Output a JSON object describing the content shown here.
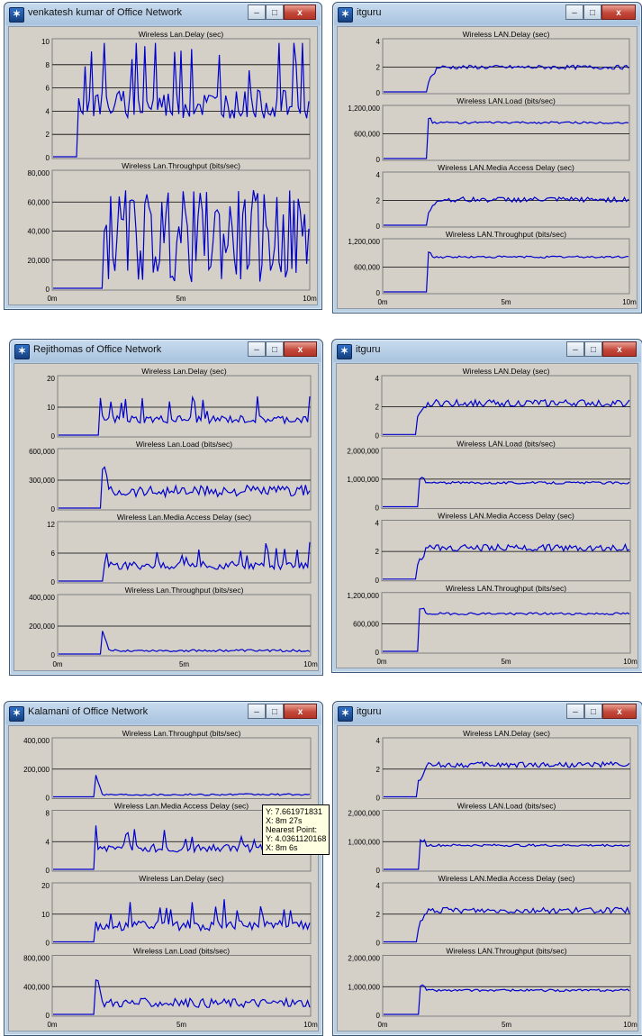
{
  "x_ticks": [
    "0m",
    "5m",
    "10m"
  ],
  "colors": {
    "series": "#0000cc",
    "plot_bg": "#d4d0c8",
    "grid": "#000000"
  },
  "windows": [
    {
      "id": "w1",
      "title": "venkatesh kumar of Office Network",
      "panels": [
        {
          "title": "Wireless Lan.Delay (sec)",
          "yticks": [
            "10",
            "8",
            "6",
            "4",
            "2",
            "0"
          ],
          "ymax": 10,
          "start": 0.1,
          "pattern": "spiky",
          "base": 0.33,
          "amp": 0.35,
          "startgap": false
        },
        {
          "title": "Wireless Lan.Throughput (bits/sec)",
          "yticks": [
            "80,000",
            "60,000",
            "40,000",
            "20,000",
            "0"
          ],
          "ymax": 80000,
          "start": 0.2,
          "pattern": "noisy",
          "base": 0.45,
          "amp": 0.4,
          "startgap": false
        }
      ]
    },
    {
      "id": "w2",
      "title": "itguru",
      "panels": [
        {
          "title": "Wireless LAN.Delay (sec)",
          "yticks": [
            "4",
            "2",
            "0"
          ],
          "ymax": 4,
          "start": 0.18,
          "pattern": "steady",
          "base": 0.48,
          "amp": 0.04,
          "startgap": false
        },
        {
          "title": "Wireless LAN.Load (bits/sec)",
          "yticks": [
            "1,200,000",
            "600,000",
            "0"
          ],
          "ymax": 1200000,
          "start": 0.18,
          "pattern": "step",
          "base": 0.7,
          "amp": 0.02,
          "startgap": false
        },
        {
          "title": "Wireless LAN.Media Access Delay (sec)",
          "yticks": [
            "4",
            "2",
            "0"
          ],
          "ymax": 4,
          "start": 0.18,
          "pattern": "steady",
          "base": 0.5,
          "amp": 0.05,
          "startgap": false
        },
        {
          "title": "Wireless LAN.Throughput (bits/sec)",
          "yticks": [
            "1,200,000",
            "600,000",
            "0"
          ],
          "ymax": 1200000,
          "start": 0.18,
          "pattern": "step",
          "base": 0.68,
          "amp": 0.02,
          "startgap": false
        }
      ]
    },
    {
      "id": "w3",
      "title": "Rejithomas of Office Network",
      "panels": [
        {
          "title": "Wireless Lan.Delay (sec)",
          "yticks": [
            "20",
            "10",
            "0"
          ],
          "ymax": 20,
          "start": 0.16,
          "pattern": "spiky",
          "base": 0.2,
          "amp": 0.2,
          "startgap": true
        },
        {
          "title": "Wireless Lan.Load (bits/sec)",
          "yticks": [
            "600,000",
            "300,000",
            "0"
          ],
          "ymax": 600000,
          "start": 0.17,
          "pattern": "decay",
          "base": 0.3,
          "amp": 0.1,
          "startgap": false
        },
        {
          "title": "Wireless Lan.Media Access Delay (sec)",
          "yticks": [
            "12",
            "6",
            "0"
          ],
          "ymax": 12,
          "start": 0.18,
          "pattern": "spiky",
          "base": 0.2,
          "amp": 0.2,
          "startgap": true
        },
        {
          "title": "Wireless Lan.Throughput (bits/sec)",
          "yticks": [
            "400,000",
            "200,000",
            "0"
          ],
          "ymax": 400000,
          "start": 0.17,
          "pattern": "pulse",
          "base": 0.06,
          "amp": 0.04,
          "startgap": false
        }
      ]
    },
    {
      "id": "w4",
      "title": "itguru",
      "panels": [
        {
          "title": "Wireless LAN.Delay (sec)",
          "yticks": [
            "4",
            "2",
            "0"
          ],
          "ymax": 4,
          "start": 0.14,
          "pattern": "steady",
          "base": 0.55,
          "amp": 0.06,
          "startgap": true
        },
        {
          "title": "Wireless LAN.Load (bits/sec)",
          "yticks": [
            "2,000,000",
            "1,000,000",
            "0"
          ],
          "ymax": 2000000,
          "start": 0.15,
          "pattern": "step",
          "base": 0.42,
          "amp": 0.02,
          "startgap": false
        },
        {
          "title": "Wireless LAN.Media Access Delay (sec)",
          "yticks": [
            "4",
            "2",
            "0"
          ],
          "ymax": 4,
          "start": 0.14,
          "pattern": "steady",
          "base": 0.55,
          "amp": 0.06,
          "startgap": true
        },
        {
          "title": "Wireless LAN.Throughput (bits/sec)",
          "yticks": [
            "1,200,000",
            "600,000",
            "0"
          ],
          "ymax": 1200000,
          "start": 0.15,
          "pattern": "step",
          "base": 0.66,
          "amp": 0.02,
          "startgap": false
        }
      ]
    },
    {
      "id": "w5",
      "title": "Kalamani of Office Network",
      "panels": [
        {
          "title": "Wireless Lan.Throughput (bits/sec)",
          "yticks": [
            "400,000",
            "200,000",
            "0"
          ],
          "ymax": 400000,
          "start": 0.16,
          "pattern": "pulse",
          "base": 0.04,
          "amp": 0.03,
          "startgap": false
        },
        {
          "title": "Wireless Lan.Media Access Delay (sec)",
          "yticks": [
            "8",
            "4",
            "0"
          ],
          "ymax": 8,
          "start": 0.16,
          "pattern": "spiky",
          "base": 0.3,
          "amp": 0.2,
          "startgap": true
        },
        {
          "title": "Wireless Lan.Delay (sec)",
          "yticks": [
            "20",
            "10",
            "0"
          ],
          "ymax": 20,
          "start": 0.16,
          "pattern": "spiky",
          "base": 0.2,
          "amp": 0.25,
          "startgap": true
        },
        {
          "title": "Wireless Lan.Load (bits/sec)",
          "yticks": [
            "800,000",
            "400,000",
            "0"
          ],
          "ymax": 800000,
          "start": 0.16,
          "pattern": "decay",
          "base": 0.2,
          "amp": 0.08,
          "startgap": false
        }
      ]
    },
    {
      "id": "w6",
      "title": "itguru",
      "panels": [
        {
          "title": "Wireless LAN.Delay (sec)",
          "yticks": [
            "4",
            "2",
            "0"
          ],
          "ymax": 4,
          "start": 0.14,
          "pattern": "steady",
          "base": 0.56,
          "amp": 0.05,
          "startgap": true
        },
        {
          "title": "Wireless LAN.Load (bits/sec)",
          "yticks": [
            "2,000,000",
            "1,000,000",
            "0"
          ],
          "ymax": 2000000,
          "start": 0.15,
          "pattern": "step",
          "base": 0.42,
          "amp": 0.02,
          "startgap": false
        },
        {
          "title": "Wireless LAN.Media Access Delay (sec)",
          "yticks": [
            "4",
            "2",
            "0"
          ],
          "ymax": 4,
          "start": 0.14,
          "pattern": "steady",
          "base": 0.55,
          "amp": 0.05,
          "startgap": true
        },
        {
          "title": "Wireless LAN.Throughput (bits/sec)",
          "yticks": [
            "2,000,000",
            "1,000,000",
            "0"
          ],
          "ymax": 2000000,
          "start": 0.15,
          "pattern": "step",
          "base": 0.42,
          "amp": 0.02,
          "startgap": false
        }
      ]
    }
  ],
  "tooltip": {
    "line1": "Y: 7.661971831",
    "line2": "X: 8m 27s",
    "line3": "Nearest Point:",
    "line4": "Y: 4.0361120168",
    "line5": "X: 8m 6s"
  },
  "window_controls": {
    "minimize": "–",
    "maximize": "□",
    "close": "x"
  }
}
